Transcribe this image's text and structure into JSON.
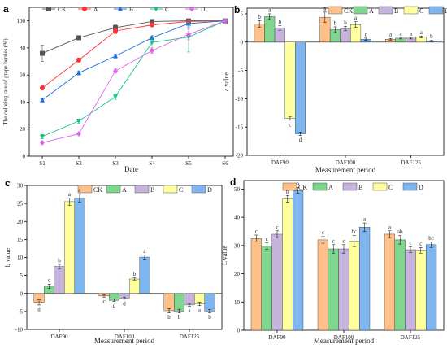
{
  "chart_data": [
    {
      "panel": "a",
      "type": "line",
      "xlabel": "Date",
      "ylabel": "The coloring rate of grape berries (%)",
      "categories": [
        "S1",
        "S2",
        "S3",
        "S4",
        "S5",
        "S6"
      ],
      "ylim": [
        0,
        110
      ],
      "yticks": [
        "0",
        "20",
        "40",
        "60",
        "80",
        "100"
      ],
      "legend_position": "top",
      "series": [
        {
          "name": "CK",
          "color": "#555555",
          "marker": "square",
          "values": [
            76,
            87.5,
            95,
            99.5,
            100,
            100
          ],
          "errors": [
            6,
            1.5,
            2,
            1,
            1,
            0
          ]
        },
        {
          "name": "A",
          "color": "#ff3333",
          "marker": "circle",
          "values": [
            50.5,
            71,
            92.5,
            97,
            99.5,
            100
          ],
          "errors": [
            1.5,
            1.5,
            2,
            1,
            1,
            0
          ]
        },
        {
          "name": "B",
          "color": "#1f6fe0",
          "marker": "triangle-up",
          "values": [
            41.5,
            61.5,
            74,
            87.5,
            98,
            100
          ],
          "errors": [
            1.5,
            1.5,
            1.5,
            1.5,
            2.5,
            0
          ]
        },
        {
          "name": "C",
          "color": "#19c089",
          "marker": "triangle-down",
          "values": [
            14.5,
            26,
            44,
            84,
            88,
            100
          ],
          "errors": [
            1.5,
            1.5,
            2,
            5,
            11,
            0
          ]
        },
        {
          "name": "D",
          "color": "#dd66ee",
          "marker": "diamond",
          "values": [
            10,
            16.5,
            63,
            78,
            90,
            100
          ],
          "errors": [
            1,
            1,
            1.5,
            2,
            4,
            0
          ]
        }
      ]
    },
    {
      "panel": "b",
      "type": "bar",
      "xlabel": "Measurement period",
      "ylabel": "a value",
      "categories": [
        "DAF90",
        "DAF100",
        "DAF125"
      ],
      "ylim": [
        -20,
        6
      ],
      "yticks": [
        "-20",
        "-15",
        "-10",
        "-5",
        "0",
        "5"
      ],
      "legend_position": "top",
      "series": [
        {
          "name": "CK",
          "color": "#ffc08a",
          "values": [
            3.2,
            4.4,
            0.5
          ],
          "errors": [
            0.6,
            0.9,
            0.15
          ],
          "letters": [
            "b",
            "a",
            "a"
          ]
        },
        {
          "name": "A",
          "color": "#7fd68f",
          "values": [
            4.5,
            2.2,
            0.7
          ],
          "errors": [
            0.5,
            0.5,
            0.15
          ],
          "letters": [
            "a",
            "b",
            "a"
          ]
        },
        {
          "name": "B",
          "color": "#c6b4dd",
          "values": [
            2.5,
            2.4,
            0.7
          ],
          "errors": [
            0.4,
            0.4,
            0.15
          ],
          "letters": [
            "b",
            "b",
            "a"
          ]
        },
        {
          "name": "C",
          "color": "#ffffa0",
          "values": [
            -13.5,
            3.1,
            0.9
          ],
          "errors": [
            0.3,
            0.5,
            0.15
          ],
          "letters": [
            "c",
            "a",
            "a"
          ]
        },
        {
          "name": "D",
          "color": "#7fb6f0",
          "values": [
            -16.2,
            0.5,
            0.2
          ],
          "errors": [
            0.3,
            0.2,
            0.1
          ],
          "letters": [
            "d",
            "c",
            "b"
          ]
        }
      ]
    },
    {
      "panel": "c",
      "type": "bar",
      "xlabel": "Measurement period",
      "ylabel": "b value",
      "categories": [
        "DAF90",
        "DAF100",
        "DAF125"
      ],
      "ylim": [
        -10,
        30
      ],
      "yticks": [
        "-10",
        "-5",
        "0",
        "5",
        "10",
        "15",
        "20",
        "25",
        "30"
      ],
      "legend_position": "top",
      "series": [
        {
          "name": "CK",
          "color": "#ffc08a",
          "values": [
            -2.5,
            -0.7,
            -4.8
          ],
          "errors": [
            0.7,
            0.3,
            0.6
          ],
          "letters": [
            "d",
            "c",
            "b"
          ]
        },
        {
          "name": "A",
          "color": "#7fd68f",
          "values": [
            2.0,
            -1.9,
            -4.9
          ],
          "errors": [
            0.6,
            0.3,
            0.5
          ],
          "letters": [
            "c",
            "d",
            "b"
          ]
        },
        {
          "name": "B",
          "color": "#c6b4dd",
          "values": [
            7.5,
            -1.3,
            -3.2
          ],
          "errors": [
            0.6,
            0.3,
            0.4
          ],
          "letters": [
            "b",
            "d",
            "a"
          ]
        },
        {
          "name": "C",
          "color": "#ffffa0",
          "values": [
            25.5,
            4.0,
            -2.9
          ],
          "errors": [
            1.0,
            0.3,
            0.5
          ],
          "letters": [
            "a",
            "b",
            "a"
          ]
        },
        {
          "name": "D",
          "color": "#7fb6f0",
          "values": [
            26.5,
            10.1,
            -4.9
          ],
          "errors": [
            1.2,
            0.6,
            0.5
          ],
          "letters": [
            "a",
            "a",
            "b"
          ]
        }
      ]
    },
    {
      "panel": "d",
      "type": "bar",
      "xlabel": "Measurement period",
      "ylabel": "L value",
      "categories": [
        "DAF90",
        "DAF100",
        "DAF125"
      ],
      "ylim": [
        0,
        53
      ],
      "yticks": [
        "0",
        "10",
        "20",
        "30",
        "40",
        "50"
      ],
      "legend_position": "top",
      "series": [
        {
          "name": "CK",
          "color": "#ffc08a",
          "values": [
            32.5,
            32.0,
            34.0
          ],
          "errors": [
            1.2,
            1.2,
            1.2
          ],
          "letters": [
            "c",
            "c",
            "a"
          ]
        },
        {
          "name": "A",
          "color": "#7fd68f",
          "values": [
            29.8,
            28.8,
            32.0
          ],
          "errors": [
            1.2,
            1.5,
            1.5
          ],
          "letters": [
            "c",
            "c",
            "ab"
          ]
        },
        {
          "name": "B",
          "color": "#c6b4dd",
          "values": [
            34.0,
            28.8,
            28.5
          ],
          "errors": [
            1.2,
            1.5,
            1.0
          ],
          "letters": [
            "c",
            "c",
            "c"
          ]
        },
        {
          "name": "C",
          "color": "#ffffa0",
          "values": [
            46.5,
            31.5,
            28.3
          ],
          "errors": [
            1.2,
            2.0,
            1.0
          ],
          "letters": [
            "b",
            "bc",
            "c"
          ]
        },
        {
          "name": "D",
          "color": "#7fb6f0",
          "values": [
            49.5,
            36.5,
            30.3
          ],
          "errors": [
            1.0,
            1.5,
            1.0
          ],
          "letters": [
            "a",
            "a",
            "bc"
          ]
        }
      ]
    }
  ]
}
